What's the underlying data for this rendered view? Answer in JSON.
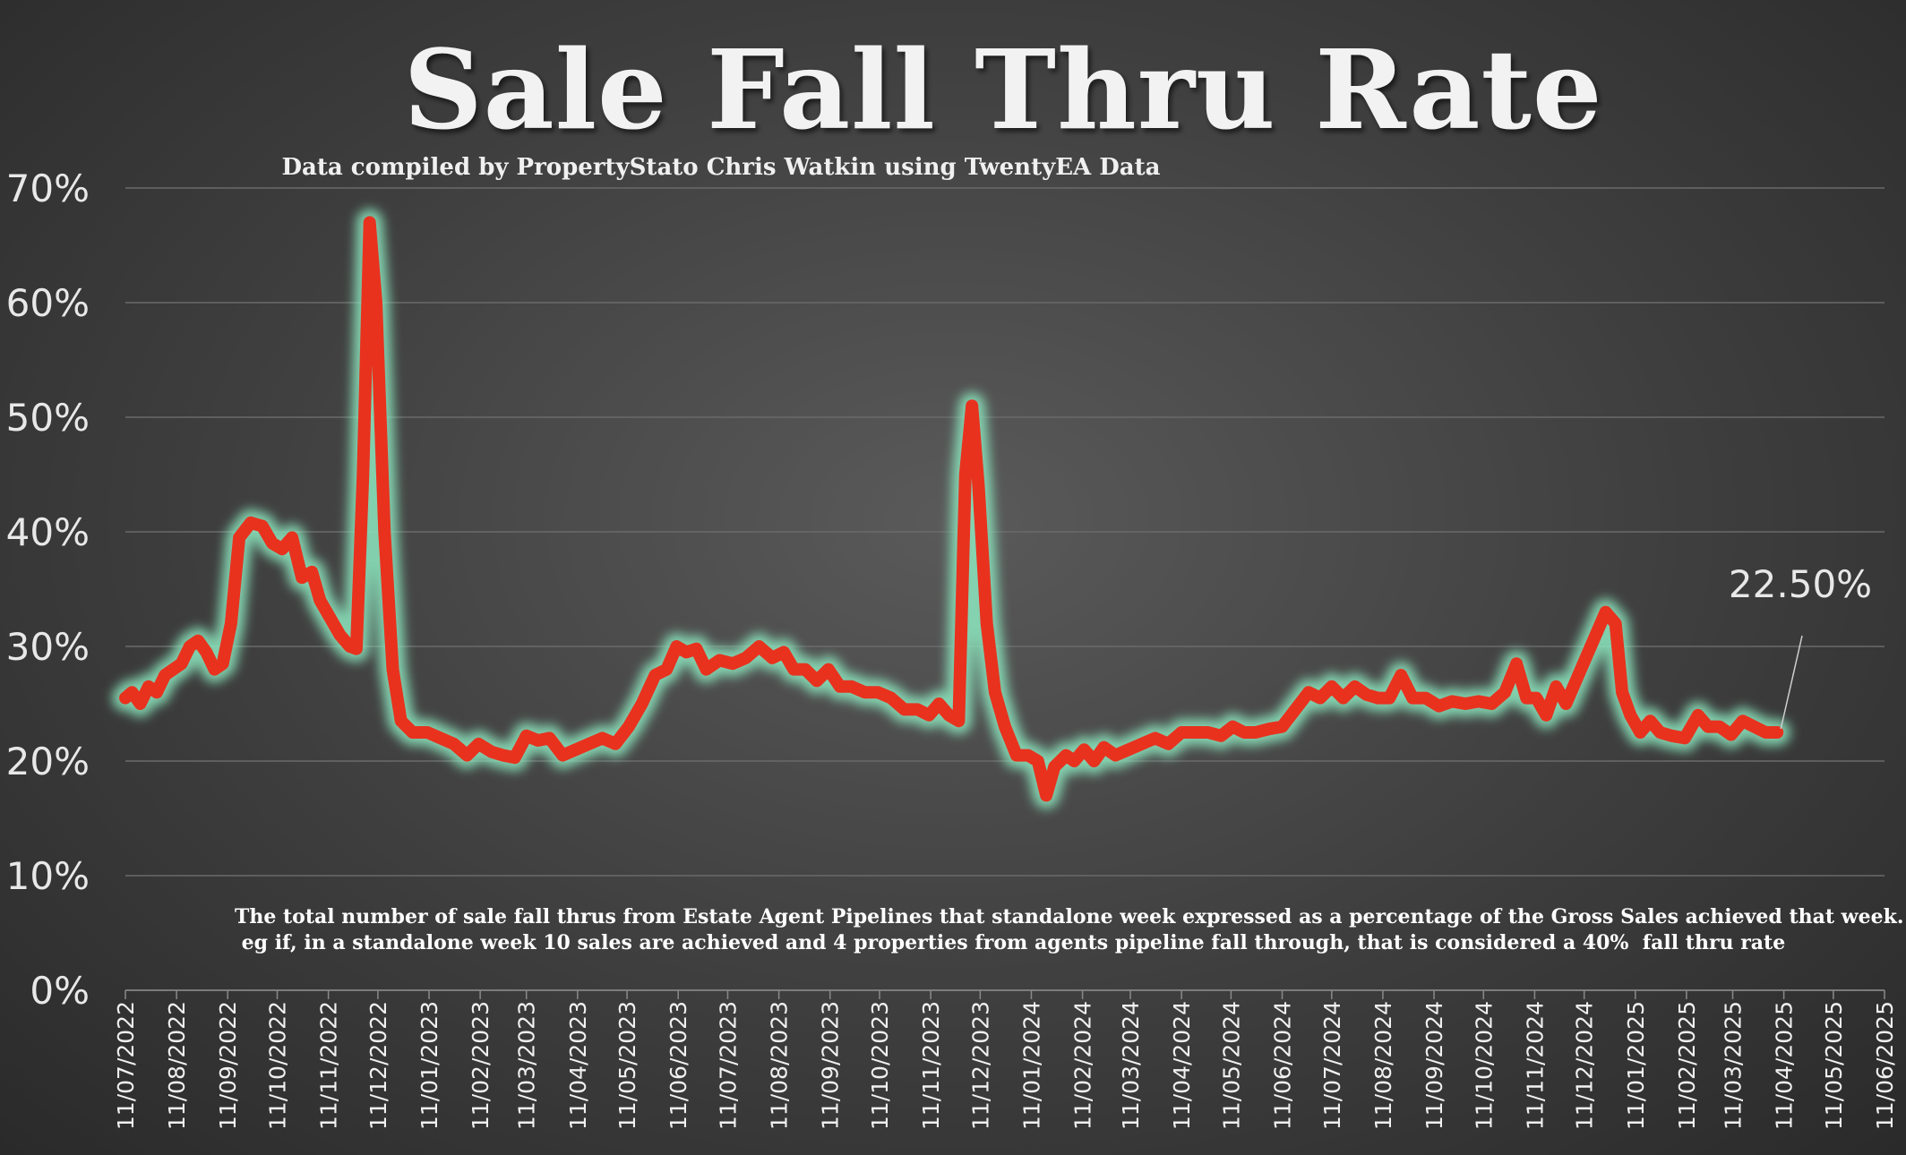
{
  "chart_data": {
    "type": "line",
    "title": "Sale Fall Thru Rate",
    "subtitle": "Data compiled by PropertyStato Chris Watkin using TwentyEA Data",
    "ylim": [
      0,
      70
    ],
    "yticks": [
      "0%",
      "10%",
      "20%",
      "30%",
      "40%",
      "50%",
      "60%",
      "70%"
    ],
    "grid": true,
    "xlim": [
      "2022-07-11",
      "2025-06-11"
    ],
    "xticks": [
      "11/07/2022",
      "11/08/2022",
      "11/09/2022",
      "11/10/2022",
      "11/11/2022",
      "11/12/2022",
      "11/01/2023",
      "11/02/2023",
      "11/03/2023",
      "11/04/2023",
      "11/05/2023",
      "11/06/2023",
      "11/07/2023",
      "11/08/2023",
      "11/09/2023",
      "11/10/2023",
      "11/11/2023",
      "11/12/2023",
      "11/01/2024",
      "11/02/2024",
      "11/03/2024",
      "11/04/2024",
      "11/05/2024",
      "11/06/2024",
      "11/07/2024",
      "11/08/2024",
      "11/09/2024",
      "11/10/2024",
      "11/11/2024",
      "11/12/2024",
      "11/01/2025",
      "11/02/2025",
      "11/03/2025",
      "11/04/2025",
      "11/05/2025",
      "11/06/2025"
    ],
    "series": [
      {
        "color": "#e8321e",
        "glow": "#8de8c0",
        "points": [
          [
            "2022-07-11",
            25.5
          ],
          [
            "2022-07-15",
            26.0
          ],
          [
            "2022-07-20",
            25.0
          ],
          [
            "2022-07-25",
            26.5
          ],
          [
            "2022-07-30",
            26.0
          ],
          [
            "2022-08-04",
            27.5
          ],
          [
            "2022-08-09",
            28.0
          ],
          [
            "2022-08-14",
            28.5
          ],
          [
            "2022-08-19",
            30.0
          ],
          [
            "2022-08-24",
            30.5
          ],
          [
            "2022-08-29",
            29.5
          ],
          [
            "2022-09-03",
            28.0
          ],
          [
            "2022-09-08",
            28.5
          ],
          [
            "2022-09-13",
            32.0
          ],
          [
            "2022-09-18",
            39.5
          ],
          [
            "2022-09-25",
            40.8
          ],
          [
            "2022-10-02",
            40.5
          ],
          [
            "2022-10-08",
            39.0
          ],
          [
            "2022-10-14",
            38.5
          ],
          [
            "2022-10-20",
            39.5
          ],
          [
            "2022-10-26",
            36.0
          ],
          [
            "2022-11-01",
            36.5
          ],
          [
            "2022-11-06",
            34.0
          ],
          [
            "2022-11-12",
            32.5
          ],
          [
            "2022-11-18",
            31.0
          ],
          [
            "2022-11-24",
            30.0
          ],
          [
            "2022-11-28",
            29.8
          ],
          [
            "2022-12-02",
            45.0
          ],
          [
            "2022-12-06",
            67.0
          ],
          [
            "2022-12-10",
            60.0
          ],
          [
            "2022-12-15",
            40.0
          ],
          [
            "2022-12-20",
            28.0
          ],
          [
            "2022-12-25",
            23.5
          ],
          [
            "2023-01-01",
            22.5
          ],
          [
            "2023-01-10",
            22.5
          ],
          [
            "2023-01-18",
            22.0
          ],
          [
            "2023-01-26",
            21.5
          ],
          [
            "2023-02-03",
            20.5
          ],
          [
            "2023-02-10",
            21.5
          ],
          [
            "2023-02-18",
            20.8
          ],
          [
            "2023-02-25",
            20.5
          ],
          [
            "2023-03-04",
            20.3
          ],
          [
            "2023-03-11",
            22.2
          ],
          [
            "2023-03-18",
            21.8
          ],
          [
            "2023-03-25",
            22.0
          ],
          [
            "2023-04-02",
            20.5
          ],
          [
            "2023-04-10",
            21.0
          ],
          [
            "2023-04-18",
            21.5
          ],
          [
            "2023-04-26",
            22.0
          ],
          [
            "2023-05-04",
            21.5
          ],
          [
            "2023-05-12",
            23.0
          ],
          [
            "2023-05-20",
            25.0
          ],
          [
            "2023-05-28",
            27.5
          ],
          [
            "2023-06-04",
            28.0
          ],
          [
            "2023-06-10",
            30.0
          ],
          [
            "2023-06-16",
            29.5
          ],
          [
            "2023-06-22",
            29.8
          ],
          [
            "2023-06-28",
            28.0
          ],
          [
            "2023-07-06",
            28.8
          ],
          [
            "2023-07-14",
            28.5
          ],
          [
            "2023-07-22",
            29.0
          ],
          [
            "2023-07-30",
            30.0
          ],
          [
            "2023-08-07",
            29.0
          ],
          [
            "2023-08-14",
            29.5
          ],
          [
            "2023-08-20",
            28.0
          ],
          [
            "2023-08-27",
            28.0
          ],
          [
            "2023-09-03",
            27.0
          ],
          [
            "2023-09-10",
            28.0
          ],
          [
            "2023-09-17",
            26.5
          ],
          [
            "2023-09-24",
            26.5
          ],
          [
            "2023-10-02",
            26.0
          ],
          [
            "2023-10-10",
            26.0
          ],
          [
            "2023-10-18",
            25.5
          ],
          [
            "2023-10-26",
            24.5
          ],
          [
            "2023-11-03",
            24.5
          ],
          [
            "2023-11-10",
            24.0
          ],
          [
            "2023-11-16",
            25.0
          ],
          [
            "2023-11-22",
            24.0
          ],
          [
            "2023-11-28",
            23.5
          ],
          [
            "2023-12-02",
            45.0
          ],
          [
            "2023-12-06",
            51.0
          ],
          [
            "2023-12-10",
            44.0
          ],
          [
            "2023-12-15",
            32.0
          ],
          [
            "2023-12-20",
            26.0
          ],
          [
            "2023-12-26",
            23.0
          ],
          [
            "2024-01-02",
            20.5
          ],
          [
            "2024-01-09",
            20.5
          ],
          [
            "2024-01-15",
            20.0
          ],
          [
            "2024-01-20",
            17.0
          ],
          [
            "2024-01-25",
            19.5
          ],
          [
            "2024-02-01",
            20.5
          ],
          [
            "2024-02-06",
            20.0
          ],
          [
            "2024-02-12",
            21.0
          ],
          [
            "2024-02-18",
            20.0
          ],
          [
            "2024-02-24",
            21.2
          ],
          [
            "2024-03-02",
            20.5
          ],
          [
            "2024-03-10",
            21.0
          ],
          [
            "2024-03-18",
            21.5
          ],
          [
            "2024-03-26",
            22.0
          ],
          [
            "2024-04-03",
            21.5
          ],
          [
            "2024-04-11",
            22.5
          ],
          [
            "2024-04-19",
            22.5
          ],
          [
            "2024-04-27",
            22.5
          ],
          [
            "2024-05-05",
            22.2
          ],
          [
            "2024-05-12",
            23.0
          ],
          [
            "2024-05-19",
            22.5
          ],
          [
            "2024-05-26",
            22.5
          ],
          [
            "2024-06-03",
            22.8
          ],
          [
            "2024-06-11",
            23.0
          ],
          [
            "2024-06-19",
            24.5
          ],
          [
            "2024-06-27",
            26.0
          ],
          [
            "2024-07-04",
            25.5
          ],
          [
            "2024-07-11",
            26.5
          ],
          [
            "2024-07-18",
            25.5
          ],
          [
            "2024-07-25",
            26.5
          ],
          [
            "2024-08-01",
            25.8
          ],
          [
            "2024-08-08",
            25.5
          ],
          [
            "2024-08-15",
            25.5
          ],
          [
            "2024-08-22",
            27.5
          ],
          [
            "2024-08-29",
            25.5
          ],
          [
            "2024-09-06",
            25.5
          ],
          [
            "2024-09-14",
            24.8
          ],
          [
            "2024-09-22",
            25.2
          ],
          [
            "2024-09-30",
            25.0
          ],
          [
            "2024-10-08",
            25.2
          ],
          [
            "2024-10-16",
            25.0
          ],
          [
            "2024-10-24",
            26.0
          ],
          [
            "2024-10-31",
            28.5
          ],
          [
            "2024-11-06",
            25.5
          ],
          [
            "2024-11-12",
            25.5
          ],
          [
            "2024-11-18",
            24.0
          ],
          [
            "2024-11-24",
            26.5
          ],
          [
            "2024-11-30",
            25.0
          ],
          [
            "2024-12-06",
            27.0
          ],
          [
            "2024-12-12",
            29.0
          ],
          [
            "2024-12-18",
            31.0
          ],
          [
            "2024-12-24",
            33.0
          ],
          [
            "2024-12-30",
            32.0
          ],
          [
            "2025-01-03",
            26.0
          ],
          [
            "2025-01-08",
            24.0
          ],
          [
            "2025-01-14",
            22.5
          ],
          [
            "2025-01-20",
            23.5
          ],
          [
            "2025-01-26",
            22.5
          ],
          [
            "2025-02-02",
            22.2
          ],
          [
            "2025-02-10",
            22.0
          ],
          [
            "2025-02-18",
            24.0
          ],
          [
            "2025-02-24",
            23.0
          ],
          [
            "2025-03-03",
            23.0
          ],
          [
            "2025-03-10",
            22.3
          ],
          [
            "2025-03-17",
            23.5
          ],
          [
            "2025-03-24",
            23.0
          ],
          [
            "2025-03-31",
            22.5
          ],
          [
            "2025-04-07",
            22.5
          ]
        ]
      }
    ],
    "annotations": [
      {
        "text": "22.50%",
        "date": "2025-04-07",
        "value": 22.5
      }
    ],
    "notes": [
      "The total number of sale fall thrus from Estate Agent Pipelines that standalone week expressed as a percentage of the Gross Sales achieved that week.",
      " eg if, in a standalone week 10 sales are achieved and 4 properties from agents pipeline fall through, that is considered a 40%  fall thru rate"
    ]
  }
}
